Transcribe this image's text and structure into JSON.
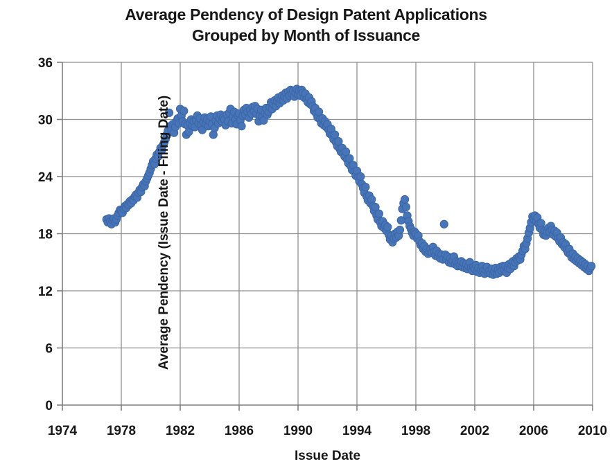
{
  "chart_data": {
    "type": "scatter",
    "title_line1": "Average Pendency of Design Patent Applications",
    "title_line2": "Grouped by Month of Issuance",
    "xlabel": "Issue Date",
    "ylabel": "Average Pendency (Issue Date - Filing Date)",
    "xlim": [
      1974,
      2010
    ],
    "ylim": [
      0,
      36
    ],
    "xticks": [
      1974,
      1978,
      1982,
      1986,
      1990,
      1994,
      1998,
      2002,
      2006,
      2010
    ],
    "yticks": [
      0,
      6,
      12,
      18,
      24,
      30,
      36
    ],
    "grid": true,
    "legend_position": "none",
    "series_name": "average-pendency-by-issue-month",
    "x_unit": "decimal-year, one point per month",
    "marker": {
      "shape": "circle",
      "fill": "#4775b7",
      "stroke": "#3a66a7",
      "radius_px": 5.6
    },
    "colors": {
      "grid": "#8e8e8e",
      "axis": "#7f7f7f",
      "text": "#171717",
      "background": "#ffffff"
    },
    "points_by_year": {
      "1977": [
        19.5,
        19.2,
        19.6,
        19.3,
        19.0,
        19.4,
        19.6,
        19.2,
        19.5,
        19.9,
        20.2,
        20.5
      ],
      "1978": [
        20.4,
        20.2,
        20.6,
        20.9,
        20.7,
        21.1,
        21.0,
        21.4,
        21.2,
        21.6,
        21.5,
        21.9
      ],
      "1979": [
        22.1,
        21.8,
        22.3,
        22.6,
        22.4,
        22.9,
        23.2,
        23.0,
        23.5,
        23.8,
        24.1,
        24.4
      ],
      "1980": [
        24.8,
        25.2,
        25.6,
        25.3,
        25.9,
        26.3,
        26.1,
        26.6,
        27.0,
        26.8,
        27.3,
        27.6
      ],
      "1981": [
        27.9,
        28.4,
        28.8,
        30.7,
        29.3,
        28.9,
        29.5,
        28.6,
        29.2,
        29.8,
        30.1,
        29.6
      ],
      "1982": [
        31.1,
        30.4,
        29.8,
        30.9,
        29.5,
        28.4,
        29.4,
        28.7,
        29.6,
        30.0,
        29.3,
        29.8
      ],
      "1983": [
        29.2,
        29.9,
        30.4,
        29.6,
        30.1,
        29.4,
        28.9,
        29.7,
        30.2,
        29.5,
        30.0,
        29.3
      ],
      "1984": [
        29.8,
        30.3,
        29.5,
        28.4,
        29.1,
        29.9,
        30.4,
        29.6,
        30.1,
        30.5,
        29.8,
        30.2
      ],
      "1985": [
        30.0,
        29.4,
        30.5,
        29.8,
        30.7,
        31.1,
        29.6,
        30.3,
        30.8,
        30.0,
        29.5,
        30.4
      ],
      "1986": [
        30.6,
        29.9,
        29.3,
        30.4,
        31.0,
        30.5,
        31.2,
        30.8,
        30.2,
        31.0,
        30.6,
        31.3
      ],
      "1987": [
        30.9,
        31.4,
        30.6,
        31.1,
        29.8,
        30.4,
        31.0,
        30.3,
        29.9,
        30.7,
        31.2,
        30.5
      ],
      "1988": [
        30.8,
        31.3,
        31.8,
        31.1,
        31.6,
        32.0,
        31.4,
        31.9,
        32.3,
        31.7,
        32.1,
        32.5
      ],
      "1989": [
        32.0,
        32.4,
        32.8,
        32.2,
        32.9,
        32.5,
        33.1,
        32.7,
        33.0,
        32.4,
        32.8,
        33.2
      ],
      "1990": [
        32.6,
        33.0,
        32.5,
        33.1,
        32.8,
        32.3,
        32.7,
        32.1,
        31.8,
        32.3,
        31.6,
        31.9
      ],
      "1991": [
        31.4,
        30.9,
        31.2,
        30.6,
        30.2,
        30.8,
        30.0,
        29.6,
        30.1,
        29.4,
        29.8,
        29.2
      ],
      "1992": [
        29.5,
        28.9,
        28.5,
        29.0,
        28.3,
        27.9,
        28.4,
        27.6,
        27.2,
        27.7,
        26.9,
        26.6
      ],
      "1993": [
        27.0,
        26.4,
        26.1,
        26.6,
        25.8,
        25.4,
        25.9,
        25.1,
        24.7,
        25.2,
        24.5,
        24.1
      ],
      "1994": [
        24.6,
        23.9,
        23.5,
        24.0,
        23.2,
        22.8,
        22.3,
        22.9,
        21.9,
        21.5,
        22.0,
        21.2
      ],
      "1995": [
        21.6,
        20.9,
        20.4,
        20.8,
        19.9,
        19.5,
        20.1,
        19.2,
        18.8,
        19.3,
        18.6,
        18.9
      ],
      "1996": [
        18.3,
        18.7,
        17.9,
        17.4,
        17.8,
        17.1,
        17.5,
        18.0,
        17.6,
        18.2,
        17.8,
        18.4
      ],
      "1997": [
        19.4,
        20.6,
        21.2,
        21.6,
        20.8,
        19.9,
        19.3,
        18.8,
        18.5,
        18.1,
        17.8,
        18.2
      ],
      "1998": [
        18.0,
        17.5,
        17.8,
        17.2,
        16.8,
        17.0,
        16.4,
        16.7,
        16.1,
        16.4,
        15.9,
        16.2
      ],
      "1999": [
        16.4,
        16.0,
        16.6,
        16.1,
        15.7,
        16.2,
        15.6,
        15.9,
        15.4,
        15.8,
        15.3,
        19.0
      ],
      "2000": [
        15.8,
        15.3,
        15.6,
        15.0,
        15.4,
        14.9,
        15.2,
        15.6,
        14.8,
        15.1,
        14.6,
        15.0
      ],
      "2001": [
        14.7,
        15.1,
        14.5,
        14.9,
        14.4,
        14.8,
        14.3,
        14.6,
        15.0,
        14.4,
        14.1,
        14.5
      ],
      "2002": [
        14.3,
        14.7,
        14.0,
        14.4,
        13.9,
        14.2,
        14.6,
        14.1,
        13.8,
        14.2,
        14.5,
        13.9
      ],
      "2003": [
        14.1,
        13.8,
        14.3,
        13.7,
        14.0,
        14.4,
        13.8,
        14.2,
        13.9,
        14.5,
        14.1,
        14.6
      ],
      "2004": [
        14.2,
        14.6,
        13.9,
        14.4,
        14.8,
        14.3,
        14.7,
        15.1,
        14.6,
        15.0,
        15.4,
        15.2
      ],
      "2005": [
        15.6,
        15.3,
        15.8,
        16.2,
        16.7,
        16.4,
        17.0,
        17.5,
        18.1,
        18.6,
        19.2,
        19.8
      ],
      "2006": [
        19.5,
        19.9,
        19.3,
        19.7,
        19.0,
        18.6,
        19.1,
        18.4,
        17.9,
        18.3,
        17.8,
        18.2
      ],
      "2007": [
        18.6,
        18.2,
        18.8,
        18.4,
        17.9,
        18.3,
        17.7,
        18.1,
        17.5,
        17.2,
        17.6,
        16.9
      ],
      "2008": [
        17.1,
        16.6,
        16.9,
        16.3,
        16.0,
        16.4,
        15.8,
        15.5,
        15.9,
        15.3,
        15.6,
        15.1
      ],
      "2009": [
        15.4,
        14.9,
        15.2,
        14.7,
        15.0,
        14.5,
        14.8,
        14.3,
        14.6,
        14.1,
        14.4,
        14.6
      ]
    }
  }
}
